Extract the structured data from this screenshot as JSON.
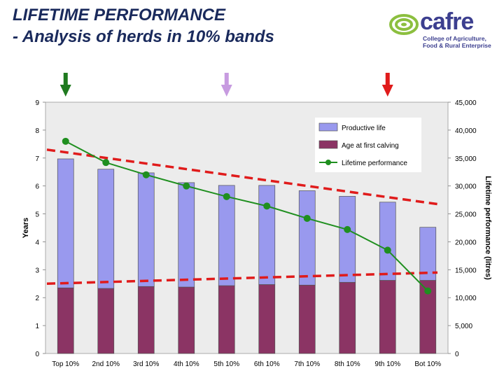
{
  "slide": {
    "title_line1": "LIFETIME PERFORMANCE",
    "title_line2": " - Analysis of herds in 10% bands"
  },
  "logo": {
    "word": "cafre",
    "tagline_line1": "College of Agriculture,",
    "tagline_line2": "Food & Rural Enterprise",
    "colors": {
      "green": "#8cbf3f",
      "navy": "#3c3f8f"
    }
  },
  "arrows": [
    {
      "color": "#1f7a1f",
      "category_index": 0
    },
    {
      "color": "#c79be0",
      "category_index": 4
    },
    {
      "color": "#e01b1b",
      "category_index": 8
    }
  ],
  "chart_data": {
    "type": "bar",
    "stacked": true,
    "categories": [
      "Top 10%",
      "2nd 10%",
      "3rd 10%",
      "4th 10%",
      "5th 10%",
      "6th 10%",
      "7th 10%",
      "8th 10%",
      "9th 10%",
      "Bot 10%"
    ],
    "series": [
      {
        "name": "Age at first calving",
        "type": "bar",
        "axis": "left",
        "color": "#8b3464",
        "values": [
          2.35,
          2.33,
          2.4,
          2.38,
          2.43,
          2.47,
          2.45,
          2.55,
          2.62,
          2.62
        ]
      },
      {
        "name": "Productive life",
        "type": "bar",
        "axis": "left",
        "color": "#9999ee",
        "values": [
          4.62,
          4.27,
          4.07,
          3.74,
          3.59,
          3.55,
          3.38,
          3.08,
          2.8,
          1.9
        ]
      },
      {
        "name": "Lifetime performance",
        "type": "line",
        "axis": "right",
        "color": "#1f8f1f",
        "values": [
          38000,
          34200,
          32000,
          30000,
          28100,
          26400,
          24200,
          22200,
          18500,
          11200
        ]
      }
    ],
    "trendlines": [
      {
        "name": "trend-total-years",
        "axis": "left",
        "color": "#e01b1b",
        "dashed": true,
        "from": 7.3,
        "to": 5.35
      },
      {
        "name": "trend-age-at-first-calving",
        "axis": "left",
        "color": "#e01b1b",
        "dashed": true,
        "from": 2.5,
        "to": 2.9
      }
    ],
    "legend": [
      "Productive life",
      "Age at first calving",
      "Lifetime performance"
    ],
    "legend_position": "top-right",
    "ylabel": "Years",
    "y2label": "Lifetime performance (litres)",
    "ylim": [
      0,
      9
    ],
    "y2lim": [
      0,
      45000
    ],
    "y_ticks": [
      "0",
      "1",
      "2",
      "3",
      "4",
      "5",
      "6",
      "7",
      "8",
      "9"
    ],
    "y2_ticks": [
      "0",
      "5,000",
      "10,000",
      "15,000",
      "20,000",
      "25,000",
      "30,000",
      "35,000",
      "40,000",
      "45,000"
    ],
    "plot_background": "#ececec",
    "grid": false
  }
}
